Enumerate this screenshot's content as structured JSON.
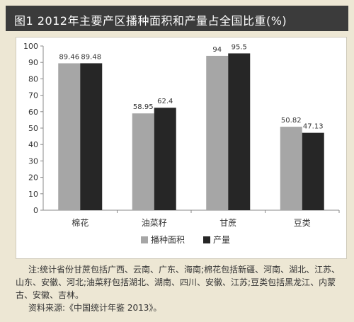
{
  "header": {
    "title": "图1 2012年主要产区播种面积和产量占全国比重(%)"
  },
  "chart_data": {
    "type": "bar",
    "title": "图1 2012年主要产区播种面积和产量占全国比重(%)",
    "categories": [
      "棉花",
      "油菜籽",
      "甘蔗",
      "豆类"
    ],
    "series": [
      {
        "name": "播种面积",
        "values": [
          89.46,
          58.95,
          94,
          50.82
        ],
        "labels": [
          "89.46",
          "58.95",
          "94",
          "50.82"
        ],
        "color": "#a6a6a6"
      },
      {
        "name": "产量",
        "values": [
          89.48,
          62.4,
          95.5,
          47.13
        ],
        "labels": [
          "89.48",
          "62.4",
          "95.5",
          "47.13"
        ],
        "color": "#262626"
      }
    ],
    "ylim": [
      0,
      100
    ],
    "yticks": [
      0,
      10,
      20,
      30,
      40,
      50,
      60,
      70,
      80,
      90,
      100
    ],
    "grid": false,
    "legend_position": "bottom"
  },
  "notes": {
    "note": "注:统计省份甘蔗包括广西、云南、广东、海南;棉花包括新疆、河南、湖北、江苏、山东、安徽、河北;油菜籽包括湖北、湖南、四川、安徽、江苏;豆类包括黑龙江、内蒙古、安徽、吉林。",
    "source": "资料来源:《中国统计年鉴 2013》。"
  }
}
